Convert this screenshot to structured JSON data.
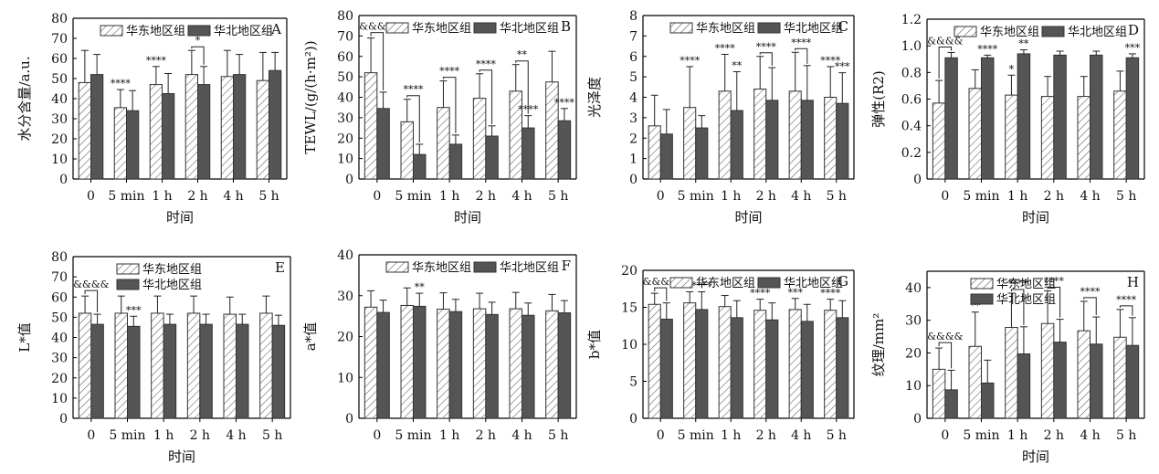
{
  "colors": {
    "east": "#ffffff",
    "north": "#555555",
    "hatch": "#666666",
    "axis": "#000000"
  },
  "chart_data": [
    {
      "id": "A",
      "panel_label": "A",
      "type": "bar",
      "ylabel": "水分含量/a.u.",
      "xlabel": "时间",
      "categories": [
        "0",
        "5 min",
        "1 h",
        "2 h",
        "4 h",
        "5 h"
      ],
      "yticks": [
        "0",
        "10",
        "20",
        "30",
        "40",
        "50",
        "60",
        "70",
        "80"
      ],
      "ylim": [
        0,
        80
      ],
      "series": [
        {
          "name": "华东地区组",
          "values": [
            48,
            35.5,
            47,
            52,
            51,
            49
          ],
          "errors": [
            16,
            9,
            9,
            12,
            13,
            14
          ]
        },
        {
          "name": "华北地区组",
          "values": [
            52,
            34,
            42.5,
            47,
            52,
            54
          ],
          "errors": [
            10,
            10,
            10,
            9,
            10,
            9
          ]
        }
      ],
      "annotations": [
        {
          "category": 1,
          "text": "****",
          "bracket": false
        },
        {
          "category": 2,
          "text": "****",
          "bracket": false
        },
        {
          "category": 3,
          "text": "*",
          "bracket": true
        }
      ],
      "legend": "top"
    },
    {
      "id": "B",
      "panel_label": "B",
      "type": "bar",
      "ylabel": "TEWL/(g/(h·m²))",
      "xlabel": "时间",
      "categories": [
        "0",
        "5 min",
        "1 h",
        "2 h",
        "4 h",
        "5 h"
      ],
      "yticks": [
        "0",
        "10",
        "20",
        "30",
        "40",
        "50",
        "60",
        "70",
        "80"
      ],
      "ylim": [
        0,
        80
      ],
      "series": [
        {
          "name": "华东地区组",
          "values": [
            52,
            28,
            35,
            39.5,
            43,
            47.5
          ],
          "errors": [
            17,
            11,
            13,
            12,
            13,
            15
          ]
        },
        {
          "name": "华北地区组",
          "values": [
            34.5,
            12,
            17,
            21,
            25,
            28.5
          ],
          "errors": [
            8,
            5,
            4.5,
            5,
            6,
            6
          ]
        }
      ],
      "annotations": [
        {
          "category": 0,
          "text": "&&&&",
          "bracket": true,
          "tall": true
        },
        {
          "category": 1,
          "text": "****",
          "bracket": true
        },
        {
          "category": 2,
          "text": "****",
          "bracket": true
        },
        {
          "category": 3,
          "text": "****",
          "bracket": true
        },
        {
          "category": 4,
          "text": "**",
          "bracket": true
        },
        {
          "category": 4,
          "text": "****",
          "bracket": false,
          "over": 1
        },
        {
          "category": 5,
          "text": "****",
          "bracket": false,
          "over": 1
        }
      ],
      "legend": "top"
    },
    {
      "id": "C",
      "panel_label": "C",
      "type": "bar",
      "ylabel": "光泽度",
      "xlabel": "时间",
      "categories": [
        "0",
        "5 min",
        "1 h",
        "2 h",
        "4 h",
        "5 h"
      ],
      "yticks": [
        "0",
        "1",
        "2",
        "3",
        "4",
        "5",
        "6",
        "7",
        "8"
      ],
      "ylim": [
        0,
        8
      ],
      "series": [
        {
          "name": "华东地区组",
          "values": [
            2.6,
            3.5,
            4.3,
            4.4,
            4.3,
            4.0
          ],
          "errors": [
            1.5,
            2.0,
            1.8,
            1.6,
            1.9,
            1.5
          ]
        },
        {
          "name": "华北地区组",
          "values": [
            2.2,
            2.5,
            3.35,
            3.85,
            3.85,
            3.7
          ],
          "errors": [
            1.2,
            0.6,
            1.9,
            1.6,
            1.7,
            1.5
          ]
        }
      ],
      "annotations": [
        {
          "category": 1,
          "text": "****",
          "bracket": false
        },
        {
          "category": 2,
          "text": "****",
          "bracket": false,
          "over": 0
        },
        {
          "category": 2,
          "text": "**",
          "bracket": false,
          "over": 1
        },
        {
          "category": 3,
          "text": "****",
          "bracket": true
        },
        {
          "category": 4,
          "text": "****",
          "bracket": true
        },
        {
          "category": 5,
          "text": "****",
          "bracket": false,
          "over": 0
        },
        {
          "category": 5,
          "text": "***",
          "bracket": false,
          "over": 1
        }
      ],
      "legend": "top"
    },
    {
      "id": "D",
      "panel_label": "D",
      "type": "bar",
      "ylabel": "弹性(R2)",
      "xlabel": "时间",
      "categories": [
        "0",
        "5 min",
        "1 h",
        "2 h",
        "4 h",
        "5 h"
      ],
      "yticks": [
        "0",
        "0.2",
        "0.4",
        "0.6",
        "0.8",
        "1.0",
        "1.2"
      ],
      "ylim": [
        0,
        1.2
      ],
      "series": [
        {
          "name": "华东地区组",
          "values": [
            0.57,
            0.68,
            0.63,
            0.62,
            0.62,
            0.66
          ],
          "errors": [
            0.17,
            0.14,
            0.15,
            0.15,
            0.15,
            0.15
          ]
        },
        {
          "name": "华北地区组",
          "values": [
            0.91,
            0.91,
            0.94,
            0.93,
            0.93,
            0.91
          ],
          "errors": [
            0.04,
            0.02,
            0.03,
            0.03,
            0.03,
            0.03
          ]
        }
      ],
      "annotations": [
        {
          "category": 0,
          "text": "&&&&",
          "bracket": true,
          "tall": true
        },
        {
          "category": 1,
          "text": "****",
          "bracket": false
        },
        {
          "category": 2,
          "text": "*",
          "bracket": false,
          "over": 0
        },
        {
          "category": 2,
          "text": "**",
          "bracket": false,
          "over": 1
        },
        {
          "category": 5,
          "text": "***",
          "bracket": false
        }
      ],
      "legend": "top"
    },
    {
      "id": "E",
      "panel_label": "E",
      "type": "bar",
      "ylabel": "L*值",
      "xlabel": "时间",
      "categories": [
        "0",
        "5 min",
        "1 h",
        "2 h",
        "4 h",
        "5 h"
      ],
      "yticks": [
        "0",
        "10",
        "20",
        "30",
        "40",
        "50",
        "60",
        "70",
        "80"
      ],
      "ylim": [
        0,
        80
      ],
      "series": [
        {
          "name": "华东地区组",
          "values": [
            52,
            52,
            52,
            52,
            51.5,
            52
          ],
          "errors": [
            8.5,
            8.5,
            8.5,
            8.5,
            8.5,
            8.5
          ]
        },
        {
          "name": "华北地区组",
          "values": [
            46.5,
            45.5,
            46.5,
            46.5,
            46.5,
            46
          ],
          "errors": [
            5,
            5,
            5,
            5,
            5,
            5
          ]
        }
      ],
      "annotations": [
        {
          "category": 0,
          "text": "&&&&",
          "bracket": true,
          "tall": true
        },
        {
          "category": 1,
          "text": "***",
          "bracket": false,
          "over": 1
        }
      ],
      "legend": "top-stacked"
    },
    {
      "id": "F",
      "panel_label": "F",
      "type": "bar",
      "ylabel": "a*值",
      "xlabel": "",
      "categories": [
        "0",
        "5 min",
        "1 h",
        "2 h",
        "4 h",
        "5 h"
      ],
      "yticks": [
        "0",
        "10",
        "20",
        "30",
        "40"
      ],
      "ylim": [
        0,
        40
      ],
      "series": [
        {
          "name": "华东地区组",
          "values": [
            27.2,
            27.6,
            26.7,
            26.8,
            26.8,
            26.3
          ],
          "errors": [
            4,
            4.3,
            4,
            3.8,
            4,
            4
          ]
        },
        {
          "name": "华北地区组",
          "values": [
            25.9,
            27.4,
            26.1,
            25.4,
            25.2,
            25.8
          ],
          "errors": [
            3,
            3.2,
            3,
            3,
            3,
            3
          ]
        }
      ],
      "annotations": [
        {
          "category": 1,
          "text": "**",
          "bracket": false,
          "over": 1
        }
      ],
      "legend": "top"
    },
    {
      "id": "G",
      "panel_label": "G",
      "type": "bar",
      "ylabel": "b*值",
      "xlabel": "",
      "categories": [
        "0",
        "5 min",
        "1 h",
        "2 h",
        "4 h",
        "5 h"
      ],
      "yticks": [
        "0",
        "5",
        "10",
        "15",
        "20"
      ],
      "ylim": [
        0,
        20
      ],
      "series": [
        {
          "name": "华东地区组",
          "values": [
            15.4,
            15.6,
            15.1,
            14.6,
            14.7,
            14.6
          ],
          "errors": [
            1.5,
            1.5,
            1.5,
            1.5,
            1.5,
            1.5
          ]
        },
        {
          "name": "华北地区组",
          "values": [
            13.4,
            14.7,
            13.6,
            13.3,
            13.1,
            13.6
          ],
          "errors": [
            2.2,
            2.4,
            2.3,
            2.3,
            2.3,
            2.3
          ]
        }
      ],
      "annotations": [
        {
          "category": 0,
          "text": "&&&&",
          "bracket": true,
          "tall": true
        },
        {
          "category": 1,
          "text": "****",
          "bracket": false
        },
        {
          "category": 3,
          "text": "****",
          "bracket": false
        },
        {
          "category": 4,
          "text": "***",
          "bracket": false
        },
        {
          "category": 5,
          "text": "****",
          "bracket": false
        }
      ],
      "legend": "top"
    },
    {
      "id": "H",
      "panel_label": "H",
      "type": "bar",
      "ylabel": "纹理/mm²",
      "xlabel": "时间",
      "categories": [
        "0",
        "5 min",
        "1 h",
        "2 h",
        "4 h",
        "5 h"
      ],
      "yticks": [
        "0",
        "10",
        "20",
        "30",
        "40"
      ],
      "ylim": [
        0,
        45
      ],
      "series": [
        {
          "name": "华东地区组",
          "values": [
            15,
            22,
            27.8,
            29,
            26.8,
            24.8
          ],
          "errors": [
            6.5,
            10.5,
            10.5,
            10,
            9,
            8.5
          ]
        },
        {
          "name": "华北地区组",
          "values": [
            8.7,
            10.8,
            19.7,
            23.3,
            22.7,
            22.3
          ],
          "errors": [
            6,
            7,
            8.3,
            7,
            8.3,
            8.5
          ]
        }
      ],
      "annotations": [
        {
          "category": 0,
          "text": "&&&&",
          "bracket": true,
          "tall": true
        },
        {
          "category": 1,
          "text": "**",
          "bracket": false,
          "over": 0
        },
        {
          "category": 2,
          "text": "****",
          "bracket": true
        },
        {
          "category": 3,
          "text": "****",
          "bracket": true
        },
        {
          "category": 4,
          "text": "****",
          "bracket": true
        },
        {
          "category": 5,
          "text": "****",
          "bracket": true
        }
      ],
      "legend": "top-stacked"
    }
  ]
}
